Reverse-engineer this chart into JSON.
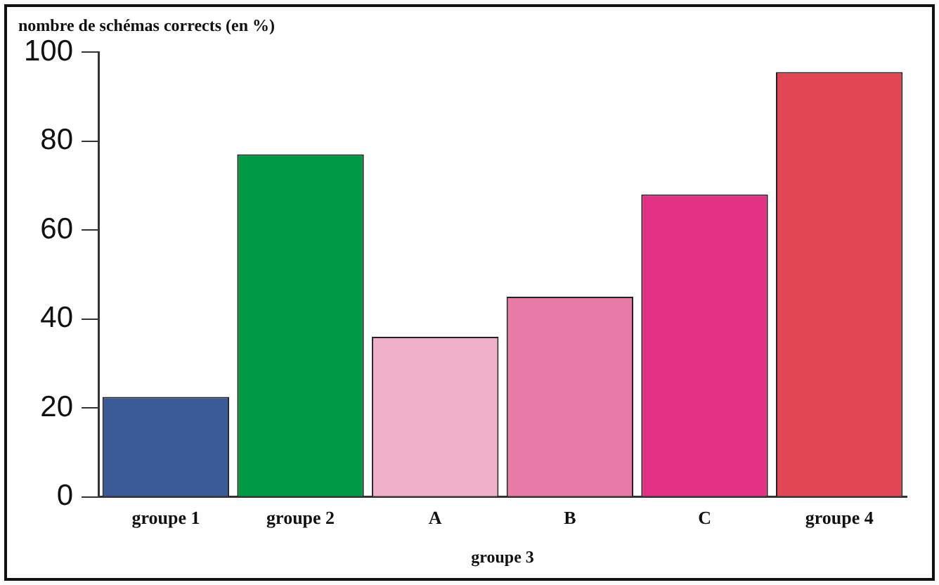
{
  "chart_data": {
    "type": "bar",
    "ylabel": "nombre de schémas corrects (en %)",
    "categories": [
      "groupe 1",
      "groupe 2",
      "A",
      "B",
      "C",
      "groupe 4"
    ],
    "values": [
      22.5,
      77,
      36,
      45,
      68,
      95.5
    ],
    "colors": [
      "#3a5a98",
      "#009a44",
      "#f0b0ca",
      "#e87aa8",
      "#e23085",
      "#e04653"
    ],
    "ylim": [
      0,
      100
    ],
    "yticks": [
      0,
      20,
      40,
      60,
      80,
      100
    ],
    "grid": false,
    "legend": false,
    "annotations": [
      "groupe 3"
    ]
  }
}
